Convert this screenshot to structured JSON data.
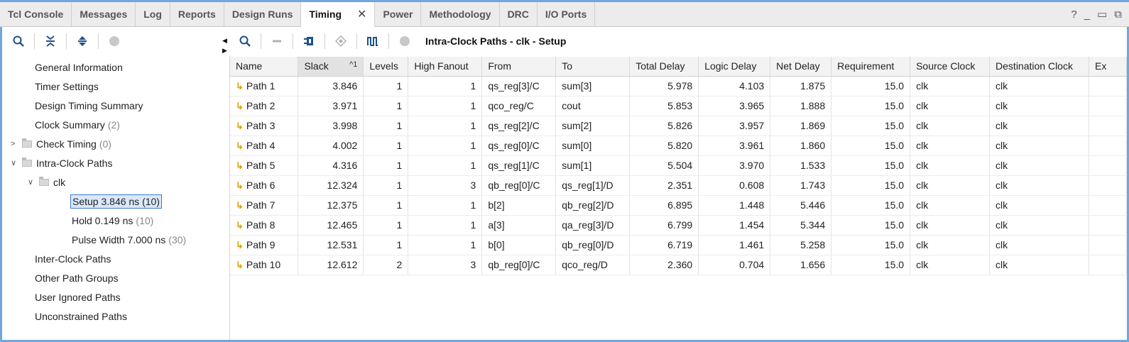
{
  "tabs": [
    {
      "label": "Tcl Console",
      "active": false
    },
    {
      "label": "Messages",
      "active": false
    },
    {
      "label": "Log",
      "active": false
    },
    {
      "label": "Reports",
      "active": false
    },
    {
      "label": "Design Runs",
      "active": false
    },
    {
      "label": "Timing",
      "active": true
    },
    {
      "label": "Power",
      "active": false
    },
    {
      "label": "Methodology",
      "active": false
    },
    {
      "label": "DRC",
      "active": false
    },
    {
      "label": "I/O Ports",
      "active": false
    }
  ],
  "window_controls": {
    "help": "?",
    "minimize": "_",
    "restore": "▭",
    "float": "⧉"
  },
  "left_toolbar": {
    "icons": [
      "search-icon",
      "collapse-all-icon",
      "expand-all-icon",
      "stop-icon"
    ]
  },
  "right_toolbar": {
    "icons": [
      "search-icon",
      "minus-icon",
      "schematic-icon",
      "marker-icon",
      "waveform-icon",
      "stop-icon"
    ],
    "title": "Intra-Clock Paths - clk - Setup"
  },
  "tree": [
    {
      "label": "General Information",
      "count": ""
    },
    {
      "label": "Timer Settings",
      "count": ""
    },
    {
      "label": "Design Timing Summary",
      "count": ""
    },
    {
      "label": "Clock Summary",
      "count": "(2)"
    },
    {
      "label": "Check Timing",
      "count": "(0)"
    },
    {
      "label": "Intra-Clock Paths",
      "count": ""
    },
    {
      "label": "clk",
      "count": ""
    },
    {
      "label": "Setup 3.846 ns (10)",
      "count": ""
    },
    {
      "label": "Hold 0.149 ns",
      "count": "(10)"
    },
    {
      "label": "Pulse Width 7.000 ns",
      "count": "(30)"
    },
    {
      "label": "Inter-Clock Paths",
      "count": ""
    },
    {
      "label": "Other Path Groups",
      "count": ""
    },
    {
      "label": "User Ignored Paths",
      "count": ""
    },
    {
      "label": "Unconstrained Paths",
      "count": ""
    }
  ],
  "table": {
    "columns": [
      "Name",
      "Slack",
      "Levels",
      "High Fanout",
      "From",
      "To",
      "Total Delay",
      "Logic Delay",
      "Net Delay",
      "Requirement",
      "Source Clock",
      "Destination Clock",
      "Ex"
    ],
    "sort_indicator": "^1",
    "rows": [
      [
        "Path 1",
        "3.846",
        "1",
        "1",
        "qs_reg[3]/C",
        "sum[3]",
        "5.978",
        "4.103",
        "1.875",
        "15.0",
        "clk",
        "clk",
        ""
      ],
      [
        "Path 2",
        "3.971",
        "1",
        "1",
        "qco_reg/C",
        "cout",
        "5.853",
        "3.965",
        "1.888",
        "15.0",
        "clk",
        "clk",
        ""
      ],
      [
        "Path 3",
        "3.998",
        "1",
        "1",
        "qs_reg[2]/C",
        "sum[2]",
        "5.826",
        "3.957",
        "1.869",
        "15.0",
        "clk",
        "clk",
        ""
      ],
      [
        "Path 4",
        "4.002",
        "1",
        "1",
        "qs_reg[0]/C",
        "sum[0]",
        "5.820",
        "3.961",
        "1.860",
        "15.0",
        "clk",
        "clk",
        ""
      ],
      [
        "Path 5",
        "4.316",
        "1",
        "1",
        "qs_reg[1]/C",
        "sum[1]",
        "5.504",
        "3.970",
        "1.533",
        "15.0",
        "clk",
        "clk",
        ""
      ],
      [
        "Path 6",
        "12.324",
        "1",
        "3",
        "qb_reg[0]/C",
        "qs_reg[1]/D",
        "2.351",
        "0.608",
        "1.743",
        "15.0",
        "clk",
        "clk",
        ""
      ],
      [
        "Path 7",
        "12.375",
        "1",
        "1",
        "b[2]",
        "qb_reg[2]/D",
        "6.895",
        "1.448",
        "5.446",
        "15.0",
        "clk",
        "clk",
        ""
      ],
      [
        "Path 8",
        "12.465",
        "1",
        "1",
        "a[3]",
        "qa_reg[3]/D",
        "6.799",
        "1.454",
        "5.344",
        "15.0",
        "clk",
        "clk",
        ""
      ],
      [
        "Path 9",
        "12.531",
        "1",
        "1",
        "b[0]",
        "qb_reg[0]/D",
        "6.719",
        "1.461",
        "5.258",
        "15.0",
        "clk",
        "clk",
        ""
      ],
      [
        "Path 10",
        "12.612",
        "2",
        "3",
        "qb_reg[0]/C",
        "qco_reg/D",
        "2.360",
        "0.704",
        "1.656",
        "15.0",
        "clk",
        "clk",
        ""
      ]
    ]
  },
  "colors": {
    "accent": "#6fa8dc",
    "path_icon": "#e0a000",
    "selection": "#3a7bd5"
  }
}
